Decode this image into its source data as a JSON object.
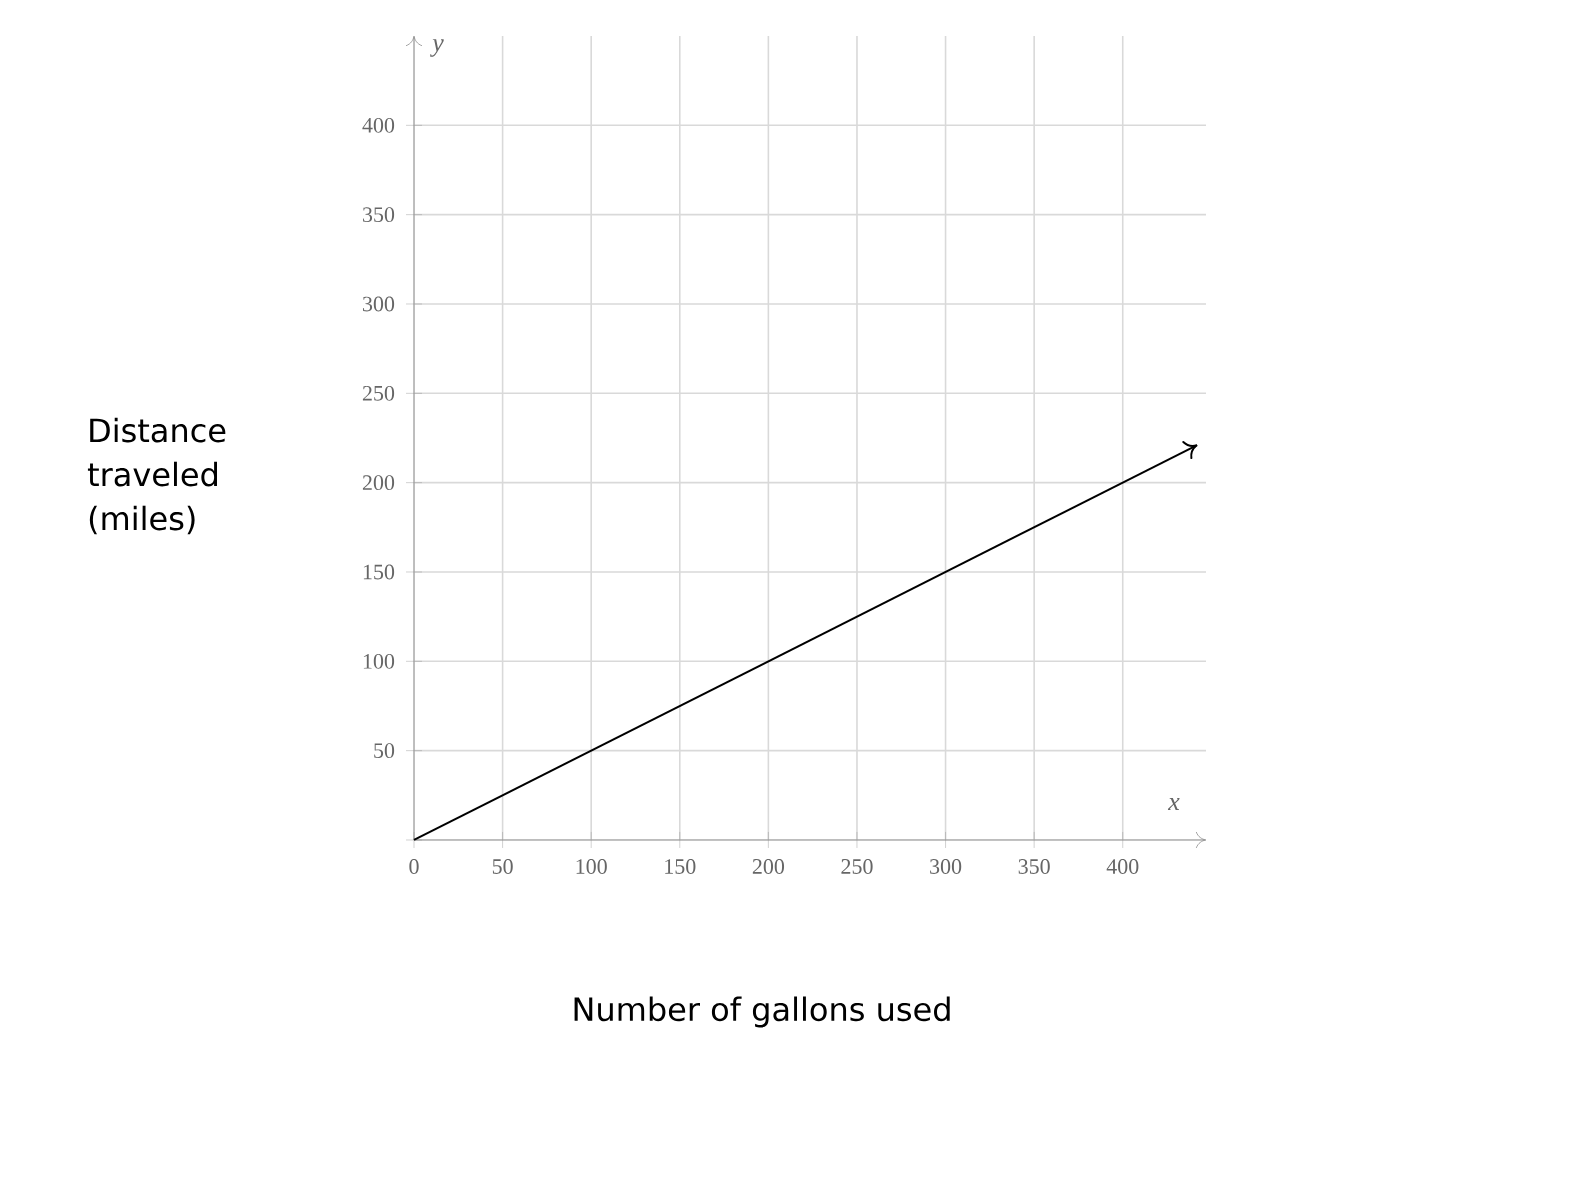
{
  "chart_data": {
    "type": "line",
    "xlabel": "Number of gallons used",
    "ylabel": "Distance traveled (miles)",
    "annotations": [
      "x",
      "y"
    ],
    "x": [
      0,
      442
    ],
    "series": [
      {
        "color": "#000000",
        "values": [
          0,
          221
        ]
      }
    ],
    "xlim": [
      0,
      447
    ],
    "ylim": [
      0,
      450
    ],
    "xticks": [
      0,
      50,
      100,
      150,
      200,
      250,
      300,
      350,
      400
    ],
    "yticks": [
      {
        "value": 0,
        "label": null
      },
      50,
      100,
      150,
      200,
      250,
      300,
      350,
      400
    ],
    "grid": true,
    "line_style": "solid"
  }
}
